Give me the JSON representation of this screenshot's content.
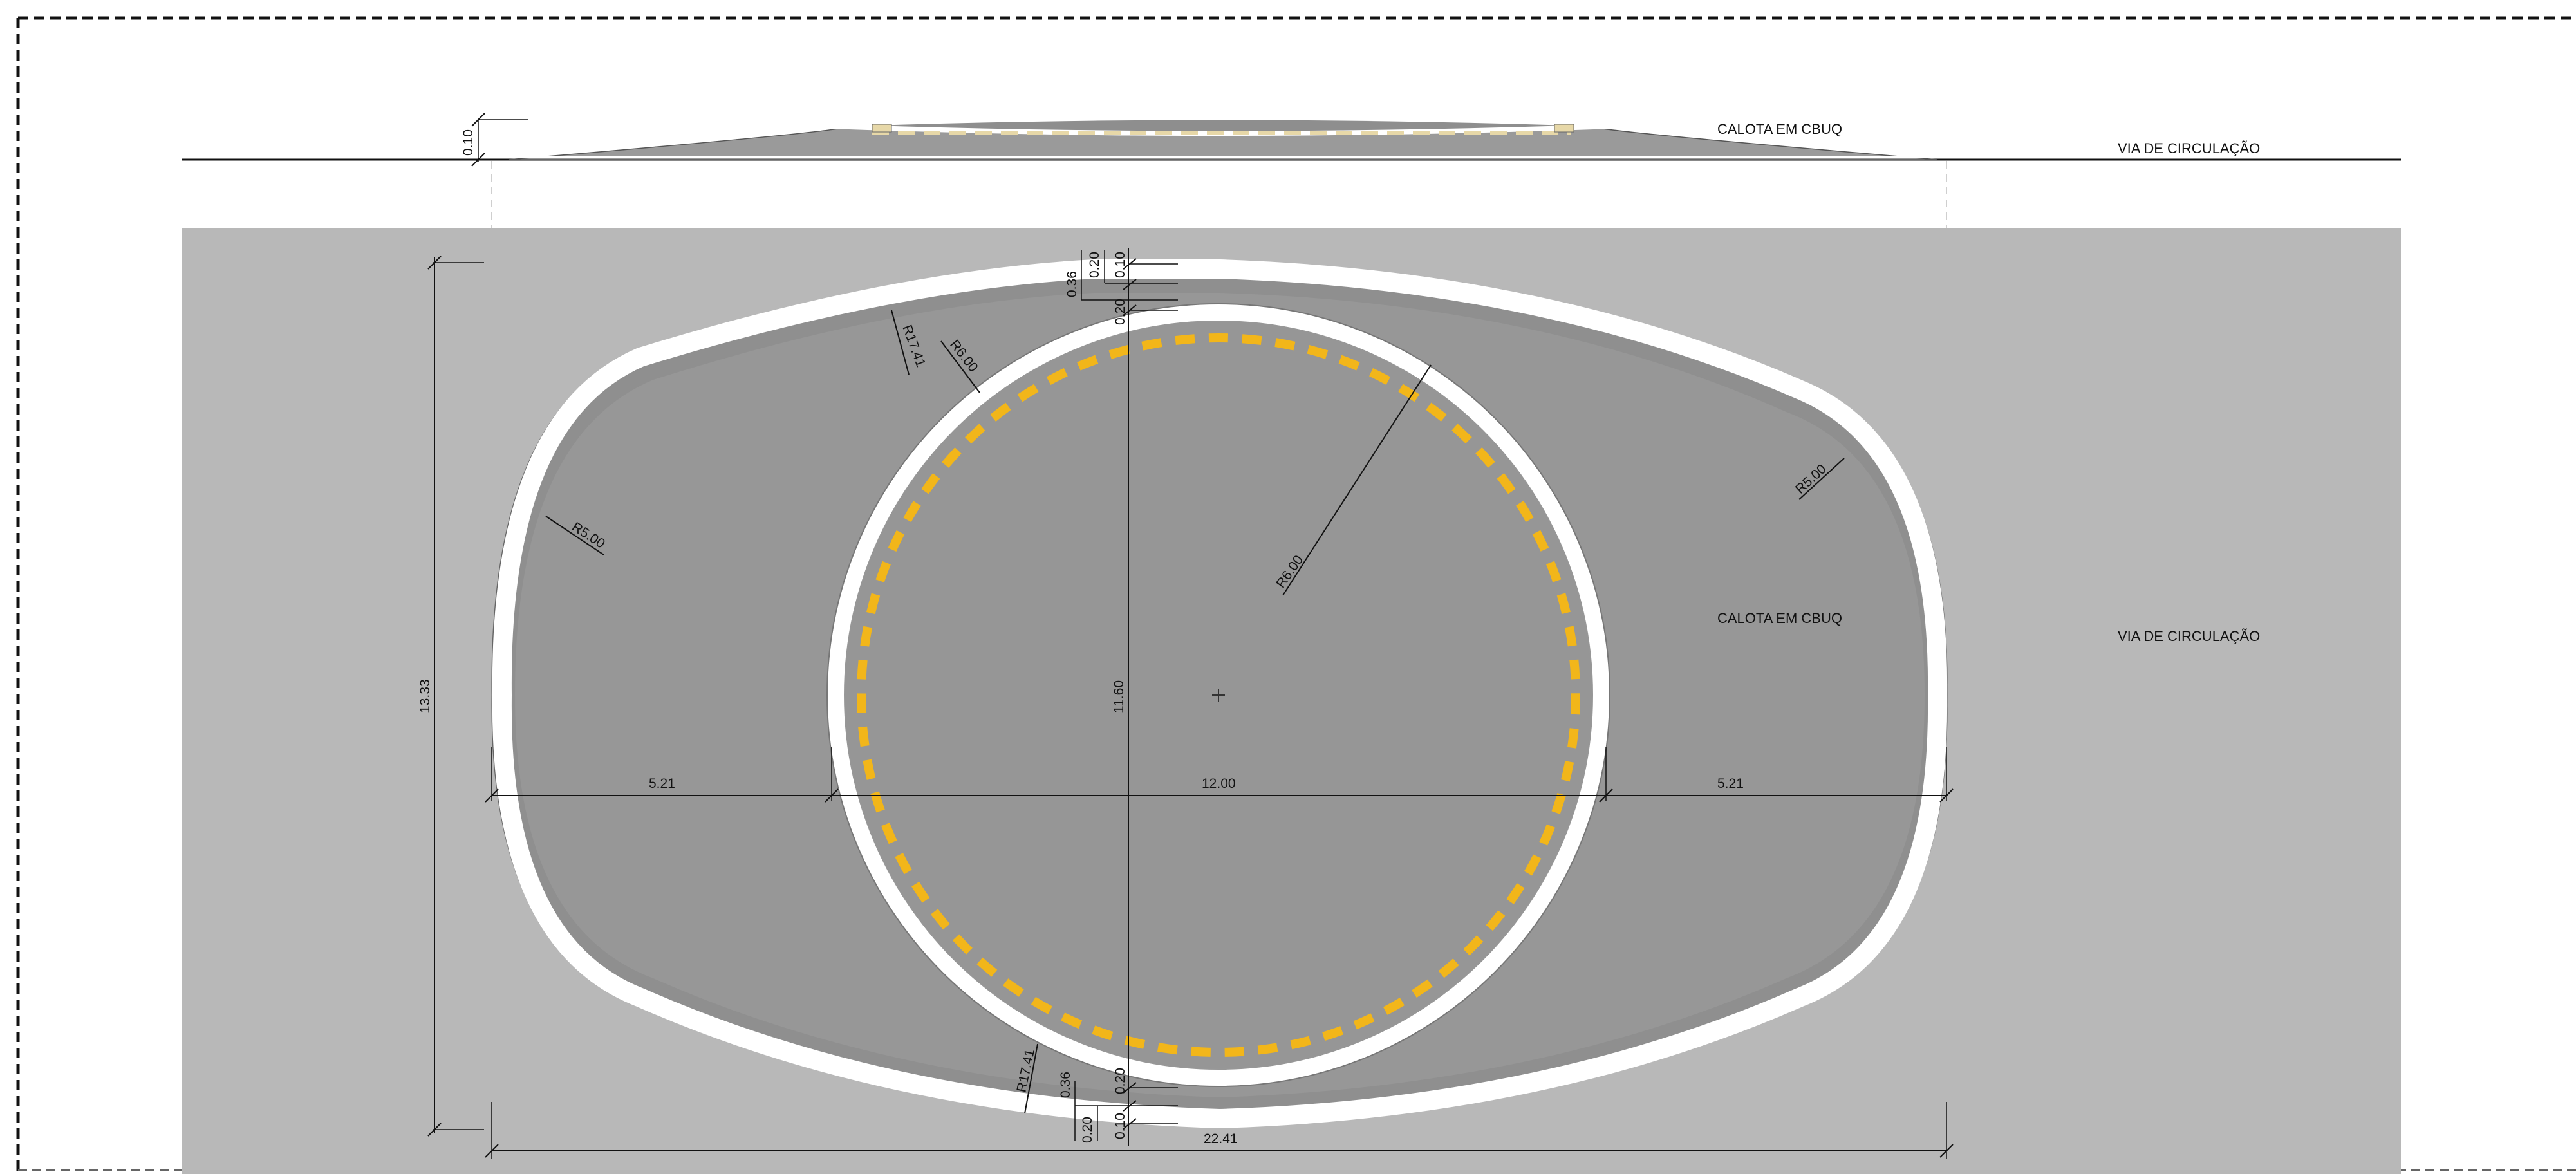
{
  "labels": {
    "section_calota": "CALOTA EM CBUQ",
    "section_via": "VIA DE CIRCULAÇÃO",
    "plan_calota": "CALOTA EM CBUQ",
    "plan_via": "VIA DE CIRCULAÇÃO"
  },
  "dimensions": {
    "height_total": "13.33",
    "inner_vertical": "11.60",
    "left_width": "5.21",
    "center_width": "12.00",
    "right_width": "5.21",
    "total_width": "22.41",
    "thickness": "0.10",
    "top_036": "0.36",
    "top_020a": "0.20",
    "top_010": "0.10",
    "top_020b": "0.20",
    "bot_020a": "0.20",
    "bot_036": "0.36",
    "bot_010": "0.10",
    "bot_020b": "0.20"
  },
  "radii": {
    "r_outer_top": "R17.41",
    "r_inner_top": "R6.00",
    "r_left": "R5.00",
    "r_center": "R6.00",
    "r_right": "R5.00",
    "r_outer_bottom": "R17.41"
  },
  "colors": {
    "road": "#b8b8b8",
    "calota": "#999999",
    "marking": "#ffffff",
    "dashed_yellow": "#f2b61a",
    "ink": "#111111"
  }
}
